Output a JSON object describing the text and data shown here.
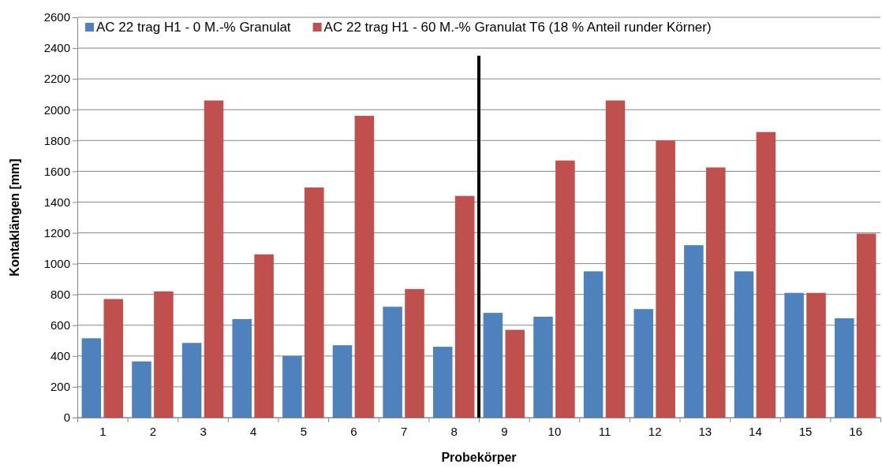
{
  "chart_data": {
    "type": "bar",
    "xlabel": "Probekörper",
    "ylabel": "Kontaklängen  [mm]",
    "x": [
      1,
      2,
      3,
      4,
      5,
      6,
      7,
      8,
      9,
      10,
      11,
      12,
      13,
      14,
      15,
      16
    ],
    "series": [
      {
        "name": "AC 22 trag H1 - 0 M.-% Granulat",
        "color": "#4f81bd",
        "values": [
          515,
          365,
          485,
          640,
          400,
          470,
          720,
          460,
          680,
          655,
          950,
          705,
          1120,
          950,
          810,
          645
        ]
      },
      {
        "name": "AC 22 trag H1 - 60 M.-% Granulat T6 (18 % Anteil runder Körner)",
        "color": "#c0504d",
        "values": [
          770,
          820,
          2060,
          1060,
          1495,
          1960,
          835,
          1440,
          570,
          1670,
          2060,
          1800,
          1625,
          1855,
          810,
          1195
        ]
      }
    ],
    "xlim": [
      0.5,
      16.5
    ],
    "xticks": [
      {
        "value": 0.5,
        "label": null
      },
      1,
      {
        "value": 1.5,
        "label": null
      },
      2,
      {
        "value": 2.5,
        "label": null
      },
      3,
      {
        "value": 3.5,
        "label": null
      },
      4,
      {
        "value": 4.5,
        "label": null
      },
      5,
      {
        "value": 5.5,
        "label": null
      },
      6,
      {
        "value": 6.5,
        "label": null
      },
      7,
      {
        "value": 7.5,
        "label": null
      },
      8,
      {
        "value": 8.5,
        "label": null
      },
      9,
      {
        "value": 9.5,
        "label": null
      },
      10,
      {
        "value": 10.5,
        "label": null
      },
      11,
      {
        "value": 11.5,
        "label": null
      },
      12,
      {
        "value": 12.5,
        "label": null
      },
      13,
      {
        "value": 13.5,
        "label": null
      },
      14,
      {
        "value": 14.5,
        "label": null
      },
      15,
      {
        "value": 15.5,
        "label": null
      },
      16,
      {
        "value": 16.5,
        "label": null
      }
    ],
    "ylim": [
      0,
      2600
    ],
    "yticks": [
      0,
      200,
      400,
      600,
      800,
      1000,
      1200,
      1400,
      1600,
      1800,
      2000,
      2200,
      2400,
      2600
    ],
    "grid": "y",
    "legend": "top",
    "ref_lines": [
      {
        "axis": "x",
        "value": 8.5,
        "color": "#000000"
      }
    ]
  }
}
